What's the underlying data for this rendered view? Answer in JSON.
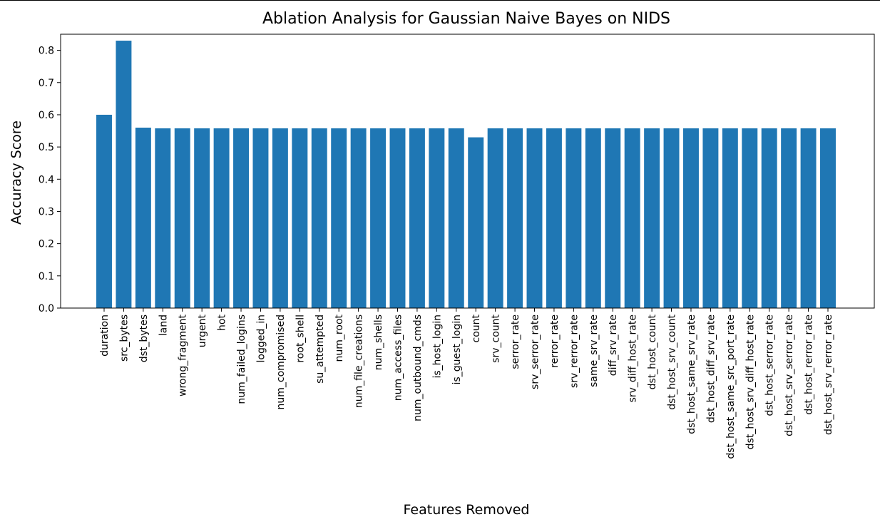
{
  "chart_data": {
    "type": "bar",
    "title": "Ablation Analysis for Gaussian Naive Bayes on NIDS",
    "xlabel": "Features Removed",
    "ylabel": "Accuracy Score",
    "ylim": [
      0,
      0.85
    ],
    "yticks": [
      "0.0",
      "0.1",
      "0.2",
      "0.3",
      "0.4",
      "0.5",
      "0.6",
      "0.7",
      "0.8"
    ],
    "grid": false,
    "bar_color": "#1f77b4",
    "categories": [
      "duration",
      "src_bytes",
      "dst_bytes",
      "land",
      "wrong_fragment",
      "urgent",
      "hot",
      "num_failed_logins",
      "logged_in",
      "num_compromised",
      "root_shell",
      "su_attempted",
      "num_root",
      "num_file_creations",
      "num_shells",
      "num_access_files",
      "num_outbound_cmds",
      "is_host_login",
      "is_guest_login",
      "count",
      "srv_count",
      "serror_rate",
      "srv_serror_rate",
      "rerror_rate",
      "srv_rerror_rate",
      "same_srv_rate",
      "diff_srv_rate",
      "srv_diff_host_rate",
      "dst_host_count",
      "dst_host_srv_count",
      "dst_host_same_srv_rate",
      "dst_host_diff_srv_rate",
      "dst_host_same_src_port_rate",
      "dst_host_srv_diff_host_rate",
      "dst_host_serror_rate",
      "dst_host_srv_serror_rate",
      "dst_host_rerror_rate",
      "dst_host_srv_rerror_rate"
    ],
    "values": [
      0.6,
      0.83,
      0.56,
      0.558,
      0.558,
      0.558,
      0.558,
      0.558,
      0.558,
      0.558,
      0.558,
      0.558,
      0.558,
      0.558,
      0.558,
      0.558,
      0.558,
      0.558,
      0.558,
      0.53,
      0.558,
      0.558,
      0.558,
      0.558,
      0.558,
      0.558,
      0.558,
      0.558,
      0.558,
      0.558,
      0.558,
      0.558,
      0.558,
      0.558,
      0.558,
      0.558,
      0.558,
      0.558
    ]
  }
}
